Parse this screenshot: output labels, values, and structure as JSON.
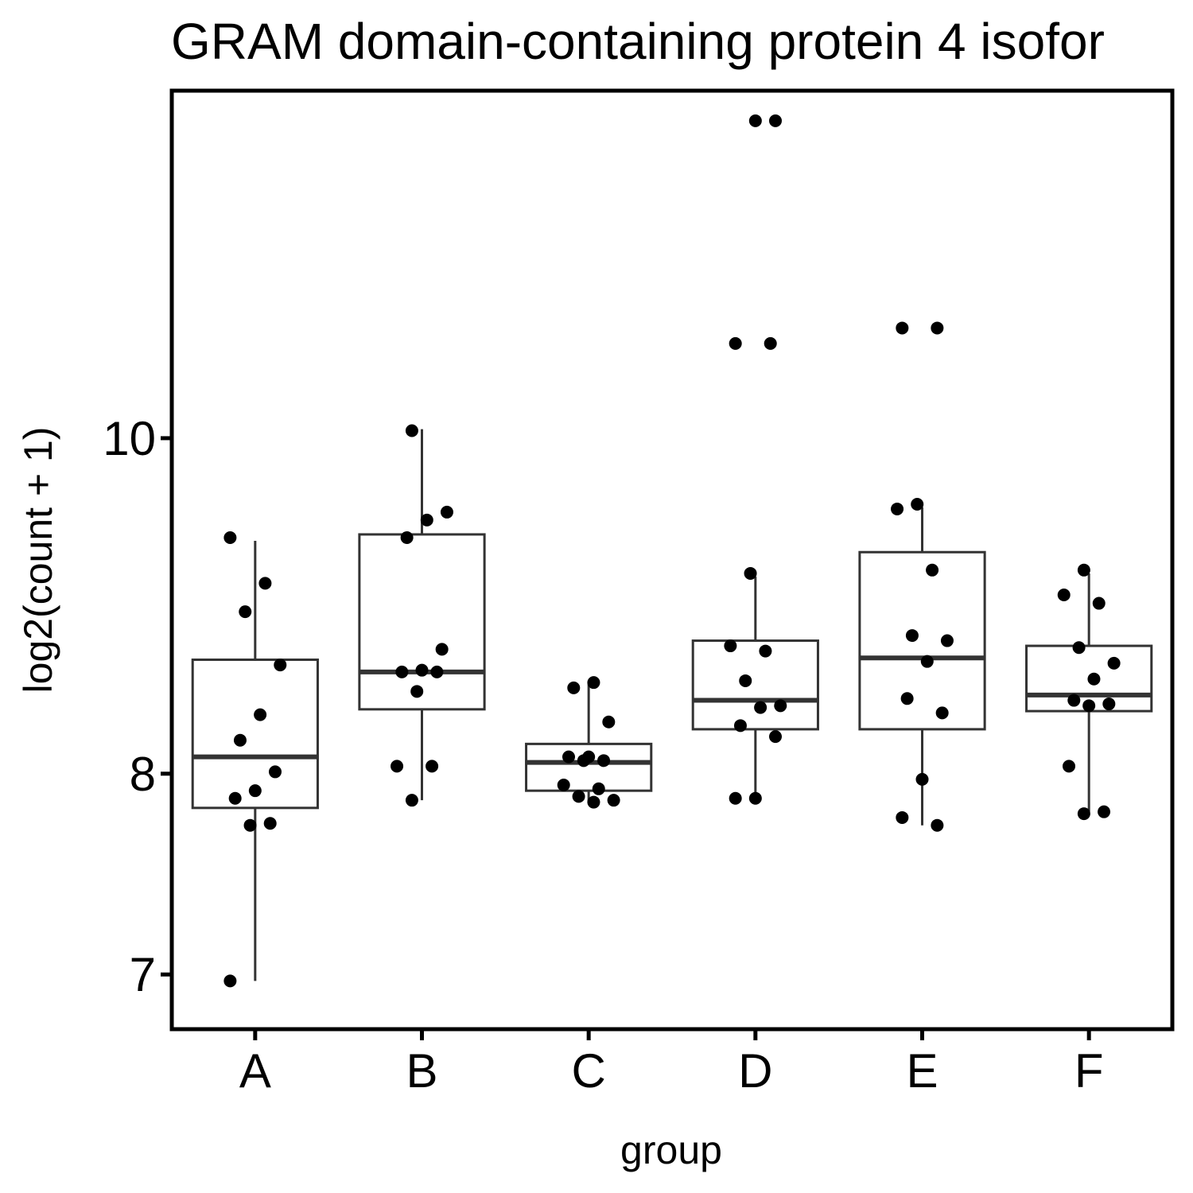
{
  "chart_data": {
    "type": "boxplot",
    "title": "GRAM domain-containing protein 4 isofor",
    "xlabel": "group",
    "ylabel": "log2(count + 1)",
    "y_scale": "log2",
    "ylim": [
      6.75,
      12.6
    ],
    "yticks": [
      7,
      8,
      10
    ],
    "categories": [
      "A",
      "B",
      "C",
      "D",
      "E",
      "F"
    ],
    "grid": false,
    "legend": "none",
    "colors": {
      "box_stroke": "#333333",
      "point": "#000000",
      "frame": "#000000",
      "background": "#ffffff"
    },
    "boxes": [
      {
        "group": "A",
        "min": 6.97,
        "q1": 7.82,
        "median": 8.09,
        "q3": 8.63,
        "max": 9.34
      },
      {
        "group": "B",
        "min": 7.86,
        "q1": 8.35,
        "median": 8.56,
        "q3": 9.38,
        "max": 10.06
      },
      {
        "group": "C",
        "min": 7.85,
        "q1": 7.91,
        "median": 8.06,
        "q3": 8.16,
        "max": 8.5
      },
      {
        "group": "D",
        "min": 7.86,
        "q1": 8.24,
        "median": 8.4,
        "q3": 8.74,
        "max": 9.12
      },
      {
        "group": "E",
        "min": 7.73,
        "q1": 8.24,
        "median": 8.64,
        "q3": 9.27,
        "max": 9.55
      },
      {
        "group": "F",
        "min": 7.8,
        "q1": 8.34,
        "median": 8.43,
        "q3": 8.71,
        "max": 9.14
      }
    ],
    "points": [
      {
        "group": "A",
        "values": [
          9.36,
          9.08,
          8.91,
          8.6,
          8.32,
          8.18,
          8.01,
          7.91,
          7.87,
          7.74,
          7.73,
          6.97
        ]
      },
      {
        "group": "B",
        "values": [
          10.05,
          9.52,
          9.47,
          9.36,
          8.69,
          8.57,
          8.56,
          8.56,
          8.45,
          8.04,
          8.04,
          7.86
        ]
      },
      {
        "group": "C",
        "values": [
          8.5,
          8.47,
          8.28,
          8.09,
          8.09,
          8.07,
          8.07,
          7.94,
          7.92,
          7.88,
          7.86,
          7.85
        ]
      },
      {
        "group": "D",
        "values": [
          12.35,
          12.35,
          10.65,
          10.65,
          9.14,
          8.71,
          8.68,
          8.51,
          8.37,
          8.36,
          8.26,
          8.2,
          7.87,
          7.87
        ]
      },
      {
        "group": "E",
        "values": [
          10.76,
          10.76,
          9.57,
          9.54,
          9.16,
          8.77,
          8.74,
          8.62,
          8.41,
          8.33,
          7.97,
          7.77,
          7.73
        ]
      },
      {
        "group": "F",
        "values": [
          9.16,
          9.01,
          8.96,
          8.7,
          8.61,
          8.52,
          8.4,
          8.38,
          8.37,
          8.04,
          7.8,
          7.79
        ]
      }
    ]
  }
}
